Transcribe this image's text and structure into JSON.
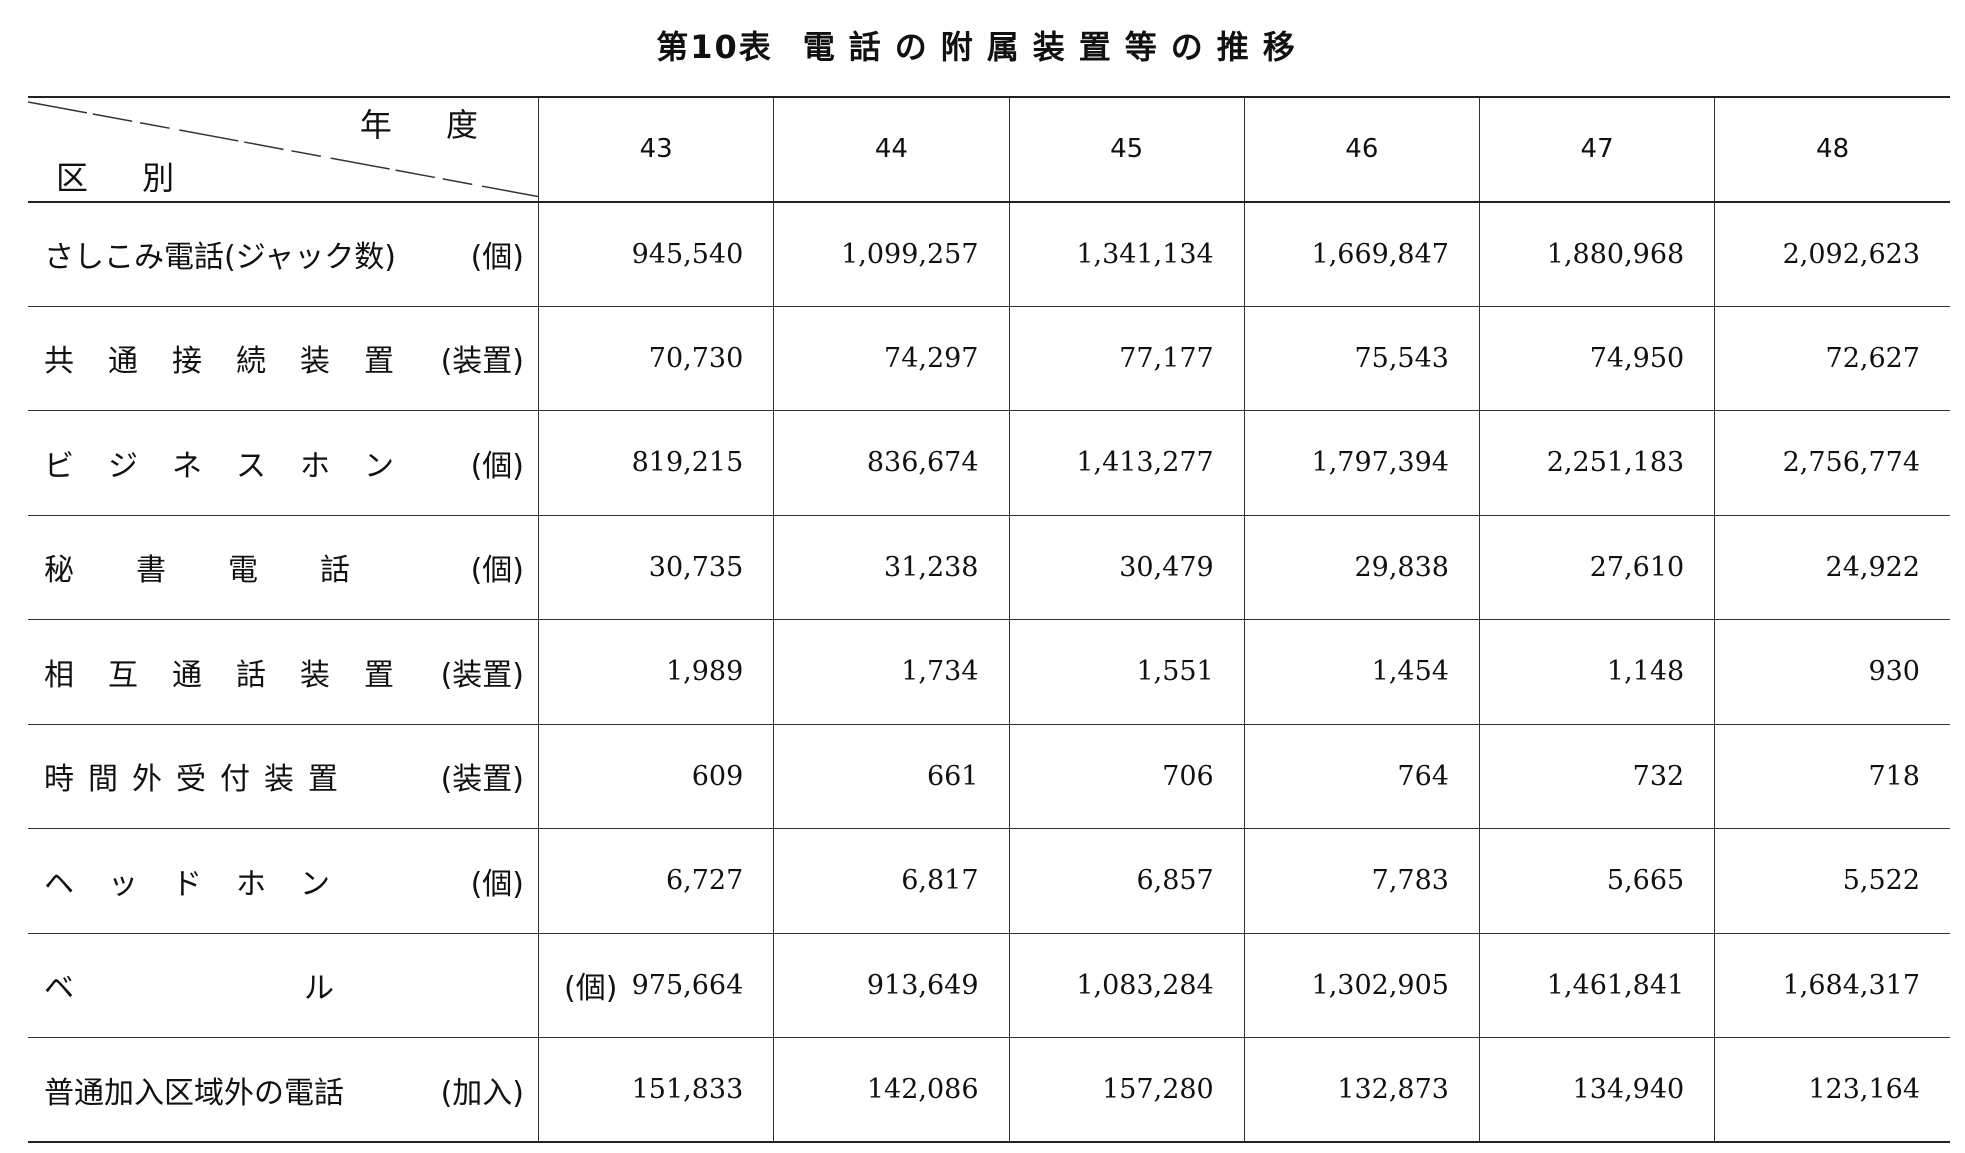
{
  "title": {
    "prefix": "第10表",
    "text": "電話の附属装置等の推移"
  },
  "header": {
    "corner_top": "年 度",
    "corner_bottom": "区 別",
    "years": [
      "43",
      "44",
      "45",
      "46",
      "47",
      "48"
    ]
  },
  "rows": [
    {
      "label": "さしこみ電話(ジャック数)",
      "unit": "(個)",
      "values": [
        "945,540",
        "1,099,257",
        "1,341,134",
        "1,669,847",
        "1,880,968",
        "2,092,623"
      ]
    },
    {
      "label": "共通接続装置",
      "unit": "(装置)",
      "values": [
        "70,730",
        "74,297",
        "77,177",
        "75,543",
        "74,950",
        "72,627"
      ]
    },
    {
      "label": "ビジネスホン",
      "unit": "(個)",
      "values": [
        "819,215",
        "836,674",
        "1,413,277",
        "1,797,394",
        "2,251,183",
        "2,756,774"
      ]
    },
    {
      "label": "秘書電話",
      "unit": "(個)",
      "values": [
        "30,735",
        "31,238",
        "30,479",
        "29,838",
        "27,610",
        "24,922"
      ]
    },
    {
      "label": "相互通話装置",
      "unit": "(装置)",
      "values": [
        "1,989",
        "1,734",
        "1,551",
        "1,454",
        "1,148",
        "930"
      ]
    },
    {
      "label": "時間外受付装置",
      "unit": "(装置)",
      "values": [
        "609",
        "661",
        "706",
        "764",
        "732",
        "718"
      ]
    },
    {
      "label": "ヘッドホン",
      "unit": "(個)",
      "values": [
        "6,727",
        "6,817",
        "6,857",
        "7,783",
        "5,665",
        "5,522"
      ]
    },
    {
      "label": "ベル",
      "unit": "(個)",
      "values": [
        "975,664",
        "913,649",
        "1,083,284",
        "1,302,905",
        "1,461,841",
        "1,684,317"
      ]
    },
    {
      "label": "普通加入区域外の電話",
      "unit": "(加入)",
      "values": [
        "151,833",
        "142,086",
        "157,280",
        "132,873",
        "134,940",
        "123,164"
      ]
    }
  ]
}
